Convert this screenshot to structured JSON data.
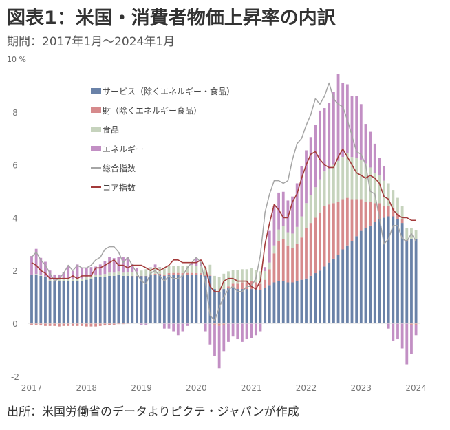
{
  "title": "図表1：米国・消費者物価上昇率の内訳",
  "subtitle": "期間：2017年1月～2024年1月",
  "source": "出所：米国労働省のデータよりピクテ・ジャパンが作成",
  "chart_data": {
    "type": "bar",
    "stacked": true,
    "title": "図表1：米国・消費者物価上昇率の内訳",
    "subtitle": "期間：2017年1月～2024年1月",
    "ylabel": "10 %",
    "xlabel": "",
    "ylim": [
      -2,
      10
    ],
    "yticks": [
      "10 %",
      "8",
      "6",
      "4",
      "2",
      "0",
      "-2"
    ],
    "ytick_values": [
      10,
      8,
      6,
      4,
      2,
      0,
      -2
    ],
    "xticks": [
      "2017",
      "2018",
      "2019",
      "2020",
      "2021",
      "2022",
      "2023",
      "2024"
    ],
    "legend_position": "top-left",
    "colors": {
      "services": "#6a82a8",
      "goods": "#d68a8c",
      "food": "#c6d3bd",
      "energy": "#c28fc4",
      "headline": "#a5a5a5",
      "core": "#a33a3a"
    },
    "legend": [
      "サービス（除くエネルギー・食品）",
      "財（除くエネルギー食品）",
      "食品",
      "エネルギー",
      "総合指数",
      "コア指数"
    ],
    "series": [
      {
        "name": "サービス（除くエネルギー・食品）",
        "key": "services",
        "kind": "bar",
        "values": [
          1.85,
          1.85,
          1.8,
          1.75,
          1.6,
          1.6,
          1.6,
          1.6,
          1.6,
          1.6,
          1.6,
          1.6,
          1.65,
          1.7,
          1.75,
          1.75,
          1.75,
          1.8,
          1.8,
          1.85,
          1.8,
          1.8,
          1.8,
          1.8,
          1.8,
          1.8,
          1.85,
          1.85,
          1.85,
          1.8,
          1.85,
          1.85,
          1.85,
          1.85,
          1.85,
          1.85,
          1.85,
          1.85,
          1.8,
          1.8,
          1.3,
          1.2,
          1.3,
          1.35,
          1.35,
          1.3,
          1.3,
          1.3,
          1.3,
          1.3,
          1.25,
          1.35,
          1.45,
          1.55,
          1.6,
          1.6,
          1.55,
          1.55,
          1.6,
          1.65,
          1.7,
          1.8,
          1.9,
          2.0,
          2.15,
          2.3,
          2.45,
          2.6,
          2.8,
          2.95,
          3.1,
          3.3,
          3.5,
          3.6,
          3.7,
          3.85,
          3.95,
          4.0,
          4.05,
          4.05,
          3.95,
          3.8,
          3.15,
          3.2,
          3.2
        ]
      },
      {
        "name": "財（除くエネルギー食品）",
        "key": "goods",
        "kind": "bar",
        "values": [
          -0.05,
          -0.05,
          -0.08,
          -0.1,
          -0.1,
          -0.1,
          -0.12,
          -0.1,
          -0.1,
          -0.1,
          -0.1,
          -0.1,
          -0.12,
          -0.12,
          -0.12,
          -0.1,
          -0.08,
          -0.06,
          -0.05,
          -0.03,
          -0.03,
          -0.02,
          0.0,
          0.0,
          0.0,
          0.0,
          0.0,
          0.03,
          0.03,
          0.03,
          0.05,
          0.06,
          0.06,
          0.05,
          0.06,
          0.06,
          0.05,
          0.05,
          0.05,
          0.02,
          -0.05,
          -0.1,
          -0.05,
          0.05,
          0.15,
          0.2,
          0.25,
          0.25,
          0.3,
          0.25,
          0.25,
          0.3,
          0.6,
          1.1,
          1.5,
          1.6,
          1.4,
          1.3,
          1.4,
          1.6,
          1.9,
          2.0,
          2.1,
          2.2,
          2.3,
          2.2,
          2.1,
          2.0,
          1.9,
          1.8,
          1.6,
          1.4,
          1.2,
          1.0,
          0.9,
          0.7,
          0.6,
          0.45,
          0.4,
          0.3,
          0.2,
          0.15,
          0.0,
          -0.05,
          -0.05
        ]
      },
      {
        "name": "食品",
        "key": "food",
        "kind": "bar",
        "values": [
          0.0,
          0.02,
          0.03,
          0.03,
          0.05,
          0.05,
          0.07,
          0.08,
          0.08,
          0.08,
          0.08,
          0.1,
          0.1,
          0.1,
          0.1,
          0.1,
          0.12,
          0.12,
          0.12,
          0.12,
          0.12,
          0.15,
          0.15,
          0.16,
          0.2,
          0.25,
          0.27,
          0.25,
          0.25,
          0.25,
          0.27,
          0.26,
          0.27,
          0.27,
          0.28,
          0.3,
          0.27,
          0.26,
          0.26,
          0.4,
          0.5,
          0.55,
          0.58,
          0.57,
          0.52,
          0.52,
          0.5,
          0.5,
          0.5,
          0.48,
          0.47,
          0.33,
          0.25,
          0.3,
          0.45,
          0.48,
          0.5,
          0.55,
          0.65,
          0.8,
          0.95,
          1.05,
          1.15,
          1.25,
          1.3,
          1.35,
          1.45,
          1.55,
          1.6,
          1.7,
          1.6,
          1.55,
          1.5,
          1.45,
          1.3,
          1.15,
          1.05,
          0.95,
          0.85,
          0.7,
          0.6,
          0.5,
          0.45,
          0.42,
          0.33
        ]
      },
      {
        "name": "エネルギー",
        "key": "energy",
        "kind": "bar",
        "values": [
          0.7,
          0.95,
          0.65,
          0.55,
          0.35,
          0.2,
          0.18,
          0.25,
          0.5,
          0.3,
          0.55,
          0.4,
          0.35,
          0.33,
          0.3,
          0.38,
          0.5,
          0.6,
          0.55,
          0.55,
          0.6,
          0.55,
          0.3,
          0.15,
          -0.05,
          -0.05,
          0.0,
          0.1,
          0.0,
          -0.2,
          -0.2,
          -0.3,
          -0.45,
          -0.3,
          -0.1,
          0.1,
          0.3,
          0.15,
          -0.3,
          -0.8,
          -1.2,
          -1.6,
          -1.0,
          -0.7,
          -0.5,
          -0.6,
          -0.7,
          -0.6,
          -0.55,
          -0.45,
          -0.3,
          0.15,
          1.2,
          1.5,
          1.4,
          1.3,
          1.2,
          1.4,
          1.65,
          1.9,
          2.0,
          2.2,
          2.35,
          2.6,
          2.4,
          2.5,
          2.75,
          3.3,
          2.8,
          2.6,
          2.3,
          2.35,
          2.1,
          1.5,
          1.35,
          1.1,
          0.65,
          0.55,
          -0.2,
          -0.65,
          -0.6,
          -0.95,
          -1.55,
          -1.1,
          -0.4
        ]
      },
      {
        "name": "総合指数",
        "key": "headline",
        "kind": "line",
        "values": [
          2.5,
          2.7,
          2.4,
          2.2,
          1.9,
          1.6,
          1.7,
          1.9,
          2.2,
          2.0,
          2.2,
          2.1,
          2.1,
          2.2,
          2.4,
          2.5,
          2.8,
          2.9,
          2.9,
          2.7,
          2.3,
          2.5,
          2.2,
          1.9,
          1.6,
          1.5,
          1.9,
          2.0,
          1.8,
          1.6,
          1.8,
          1.7,
          1.7,
          1.8,
          2.1,
          2.3,
          2.5,
          2.3,
          1.5,
          0.3,
          0.1,
          0.6,
          1.0,
          1.3,
          1.4,
          1.2,
          1.2,
          1.4,
          1.4,
          1.7,
          2.6,
          4.2,
          4.9,
          5.4,
          5.4,
          5.3,
          5.4,
          6.2,
          6.8,
          7.0,
          7.5,
          7.9,
          8.5,
          8.3,
          8.6,
          9.1,
          8.5,
          8.3,
          8.2,
          7.7,
          7.1,
          6.5,
          6.4,
          6.0,
          5.0,
          4.9,
          4.0,
          3.0,
          3.2,
          3.7,
          3.7,
          3.2,
          3.1,
          3.4,
          3.1
        ]
      },
      {
        "name": "コア指数",
        "key": "core",
        "kind": "line",
        "values": [
          2.3,
          2.2,
          2.0,
          1.9,
          1.7,
          1.7,
          1.7,
          1.7,
          1.7,
          1.8,
          1.7,
          1.8,
          1.8,
          1.8,
          2.1,
          2.1,
          2.2,
          2.3,
          2.4,
          2.2,
          2.2,
          2.1,
          2.2,
          2.2,
          2.2,
          2.1,
          2.0,
          2.1,
          2.0,
          2.1,
          2.2,
          2.4,
          2.4,
          2.3,
          2.3,
          2.3,
          2.3,
          2.4,
          2.1,
          1.4,
          1.2,
          1.2,
          1.6,
          1.7,
          1.7,
          1.6,
          1.6,
          1.6,
          1.4,
          1.3,
          1.6,
          3.0,
          3.8,
          4.5,
          4.3,
          4.0,
          4.0,
          4.6,
          4.9,
          5.5,
          6.0,
          6.4,
          6.5,
          6.2,
          6.0,
          5.9,
          5.9,
          6.3,
          6.6,
          6.3,
          6.0,
          5.7,
          5.6,
          5.5,
          5.6,
          5.5,
          5.3,
          4.8,
          4.7,
          4.3,
          4.1,
          4.0,
          4.0,
          3.9,
          3.9
        ]
      }
    ]
  }
}
